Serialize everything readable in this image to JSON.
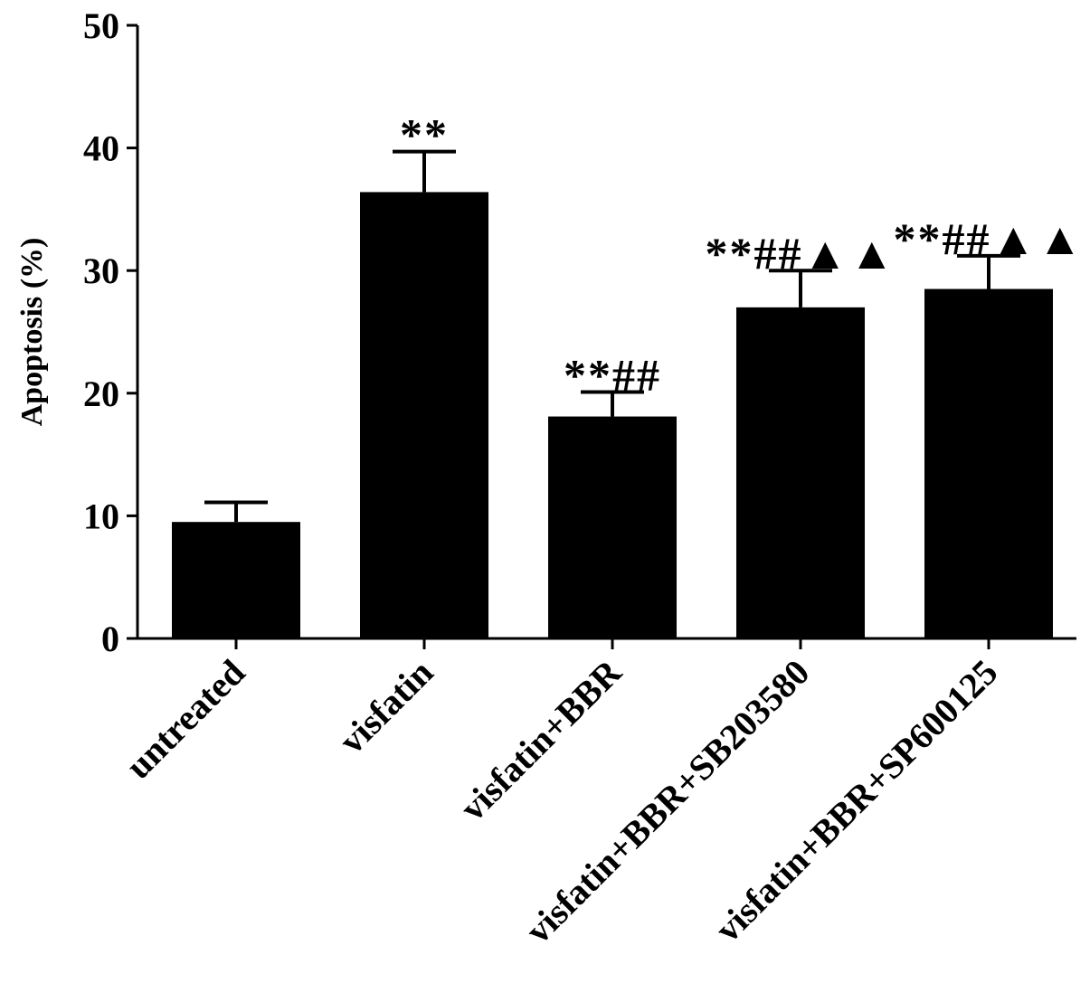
{
  "chart_data": {
    "type": "bar",
    "title": "",
    "xlabel": "",
    "ylabel": "Apoptosis (%)",
    "ylim": [
      0,
      50
    ],
    "yticks": [
      "0",
      "10",
      "20",
      "30",
      "40",
      "50"
    ],
    "categories": [
      "untreated",
      "visfatin",
      "visfatin+BBR",
      "visfatin+BBR+SB203580",
      "visfatin+BBR+SP600125"
    ],
    "values": [
      9.5,
      36.4,
      18.1,
      27.0,
      28.5
    ],
    "error_upper": [
      11.1,
      39.7,
      20.1,
      30.0,
      31.2
    ],
    "annotations": [
      "",
      "**",
      "**##",
      "**##▲▲",
      "**##▲▲"
    ],
    "grid": false,
    "bar_color": "#000000"
  }
}
